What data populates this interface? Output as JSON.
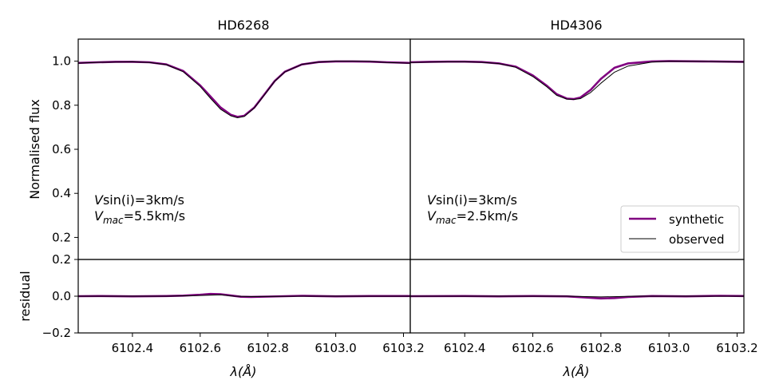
{
  "colors": {
    "synthetic": "#800080",
    "observed": "#000000",
    "axes": "#000000"
  },
  "chart_data": [
    {
      "type": "line",
      "title": "HD6268",
      "ylabel": "Normalised flux",
      "residual_ylabel": "residual",
      "xlabel": "λ(Å)",
      "xlim": [
        6102.24,
        6103.22
      ],
      "ylim": [
        0.1,
        1.1
      ],
      "residual_ylim": [
        -0.2,
        0.2
      ],
      "x_ticks": [
        "6102.4",
        "6102.6",
        "6102.8",
        "6103.0",
        "6103.2"
      ],
      "y_ticks": [
        "0.2",
        "0.4",
        "0.6",
        "0.8",
        "1.0"
      ],
      "residual_ticks": [
        "−0.2",
        "0.0",
        "0.2"
      ],
      "annotation": {
        "line1_v": "V",
        "line1_rest": "sin(i)=3km/s",
        "line2_v": "V",
        "line2_sub": "mac",
        "line2_rest": "=5.5km/s"
      },
      "series": [
        {
          "name": "synthetic",
          "x": [
            6102.24,
            6102.3,
            6102.35,
            6102.4,
            6102.45,
            6102.5,
            6102.55,
            6102.6,
            6102.63,
            6102.66,
            6102.69,
            6102.71,
            6102.73,
            6102.76,
            6102.79,
            6102.82,
            6102.85,
            6102.9,
            6102.95,
            6103.0,
            6103.05,
            6103.1,
            6103.15,
            6103.22
          ],
          "y": [
            0.992,
            0.995,
            0.997,
            0.997,
            0.995,
            0.985,
            0.955,
            0.89,
            0.84,
            0.79,
            0.757,
            0.747,
            0.752,
            0.79,
            0.85,
            0.91,
            0.952,
            0.985,
            0.996,
            0.999,
            0.999,
            0.998,
            0.995,
            0.992
          ]
        },
        {
          "name": "observed",
          "x": [
            6102.24,
            6102.3,
            6102.35,
            6102.4,
            6102.45,
            6102.5,
            6102.55,
            6102.6,
            6102.63,
            6102.66,
            6102.69,
            6102.71,
            6102.73,
            6102.76,
            6102.79,
            6102.82,
            6102.85,
            6102.9,
            6102.95,
            6103.0,
            6103.05,
            6103.1,
            6103.15,
            6103.22
          ],
          "y": [
            0.991,
            0.995,
            0.996,
            0.997,
            0.994,
            0.984,
            0.952,
            0.885,
            0.832,
            0.782,
            0.752,
            0.743,
            0.749,
            0.788,
            0.848,
            0.909,
            0.951,
            0.985,
            0.996,
            1.0,
            1.0,
            0.999,
            0.994,
            0.991
          ]
        }
      ],
      "residual_series": [
        {
          "name": "synthetic",
          "x": [
            6102.24,
            6102.3,
            6102.4,
            6102.5,
            6102.55,
            6102.6,
            6102.63,
            6102.66,
            6102.69,
            6102.72,
            6102.75,
            6102.8,
            6102.85,
            6102.9,
            6103.0,
            6103.1,
            6103.22
          ],
          "y": [
            0.0,
            0.001,
            -0.001,
            0.001,
            0.003,
            0.008,
            0.012,
            0.011,
            0.004,
            -0.003,
            -0.004,
            -0.002,
            0.0,
            0.002,
            -0.001,
            0.001,
            0.001
          ]
        },
        {
          "name": "observed",
          "x": [
            6102.24,
            6102.5,
            6102.6,
            6102.66,
            6102.7,
            6102.75,
            6102.9,
            6103.22
          ],
          "y": [
            0.0,
            0.0,
            0.004,
            0.008,
            0.0,
            -0.002,
            0.0,
            0.0
          ]
        }
      ]
    },
    {
      "type": "line",
      "title": "HD4306",
      "xlabel": "λ(Å)",
      "xlim": [
        6102.24,
        6103.22
      ],
      "ylim": [
        0.1,
        1.1
      ],
      "residual_ylim": [
        -0.2,
        0.2
      ],
      "x_ticks": [
        "6102.4",
        "6102.6",
        "6102.8",
        "6103.0",
        "6103.2"
      ],
      "annotation": {
        "line1_v": "V",
        "line1_rest": "sin(i)=3km/s",
        "line2_v": "V",
        "line2_sub": "mac",
        "line2_rest": "=2.5km/s"
      },
      "legend": {
        "placement": "lower-right",
        "entries": [
          "synthetic",
          "observed"
        ]
      },
      "series": [
        {
          "name": "synthetic",
          "x": [
            6102.24,
            6102.3,
            6102.35,
            6102.4,
            6102.45,
            6102.5,
            6102.55,
            6102.6,
            6102.64,
            6102.67,
            6102.7,
            6102.72,
            6102.74,
            6102.77,
            6102.8,
            6102.84,
            6102.88,
            6102.95,
            6103.0,
            6103.1,
            6103.22
          ],
          "y": [
            0.995,
            0.997,
            0.998,
            0.998,
            0.996,
            0.99,
            0.975,
            0.935,
            0.89,
            0.85,
            0.83,
            0.828,
            0.835,
            0.87,
            0.92,
            0.97,
            0.99,
            0.999,
            1.0,
            0.999,
            0.997
          ]
        },
        {
          "name": "observed",
          "x": [
            6102.24,
            6102.3,
            6102.35,
            6102.4,
            6102.45,
            6102.5,
            6102.55,
            6102.6,
            6102.64,
            6102.67,
            6102.7,
            6102.72,
            6102.74,
            6102.77,
            6102.8,
            6102.84,
            6102.88,
            6102.95,
            6103.0,
            6103.1,
            6103.22
          ],
          "y": [
            0.994,
            0.996,
            0.997,
            0.997,
            0.995,
            0.989,
            0.972,
            0.93,
            0.885,
            0.845,
            0.828,
            0.826,
            0.83,
            0.858,
            0.9,
            0.95,
            0.978,
            0.996,
            1.0,
            0.999,
            0.996
          ]
        }
      ],
      "residual_series": [
        {
          "name": "synthetic",
          "x": [
            6102.24,
            6102.4,
            6102.5,
            6102.6,
            6102.7,
            6102.75,
            6102.8,
            6102.84,
            6102.88,
            6102.95,
            6103.05,
            6103.15,
            6103.22
          ],
          "y": [
            0.0,
            0.001,
            -0.001,
            0.001,
            -0.001,
            -0.006,
            -0.012,
            -0.01,
            -0.004,
            0.001,
            -0.001,
            0.002,
            0.001
          ]
        },
        {
          "name": "observed",
          "x": [
            6102.24,
            6102.6,
            6102.7,
            6102.8,
            6102.9,
            6103.22
          ],
          "y": [
            0.0,
            0.0,
            0.0,
            -0.004,
            0.0,
            0.0
          ]
        }
      ]
    }
  ]
}
